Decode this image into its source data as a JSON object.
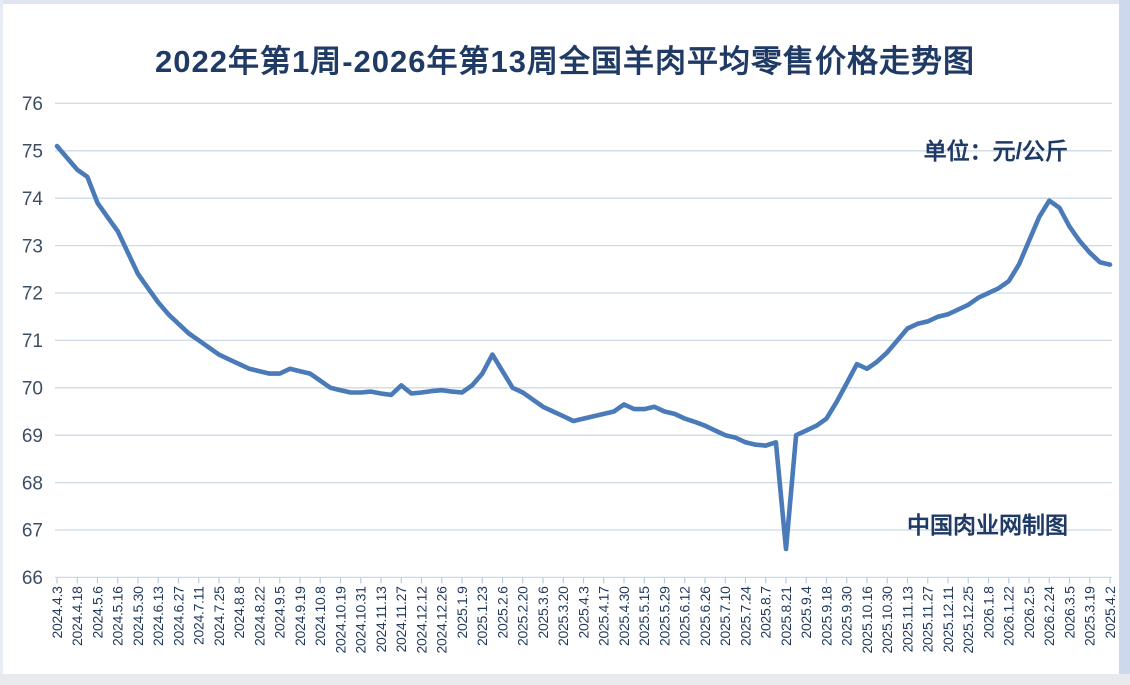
{
  "page": {
    "title": "2022年第1周-2026年第13周全国羊肉平均零售价格走势图",
    "unit_label": "单位：元/公斤",
    "watermark": "中国肉业网制图"
  },
  "colors": {
    "title_text": "#1f3a64",
    "line": "#4a7ab8",
    "grid": "#ccd9e6",
    "tick": "#b9cde4",
    "y_label_text": "#3d4e63",
    "x_label_text": "#20395c",
    "frame_right": "#ccd8ec",
    "frame_top": "#dee4f0"
  },
  "chart_data": {
    "type": "line",
    "title": "2022年第1周-2026年第13周全国羊肉平均零售价格走势图",
    "xlabel": "",
    "ylabel": "元/公斤",
    "ylim": [
      66,
      76
    ],
    "ytick_step": 1,
    "grid": true,
    "legend": false,
    "x_labels": [
      "2024.4.3",
      "2024.4.18",
      "2024.5.6",
      "2024.5.16",
      "2024.5.30",
      "2024.6.13",
      "2024.6.27",
      "2024.7.11",
      "2024.7.25",
      "2024.8.8",
      "2024.8.22",
      "2024.9.5",
      "2024.9.19",
      "2024.10.8",
      "2024.10.19",
      "2024.10.31",
      "2024.11.13",
      "2024.11.27",
      "2024.12.12",
      "2024.12.26",
      "2025.1.9",
      "2025.1.23",
      "2025.2.6",
      "2025.2.20",
      "2025.3.6",
      "2025.3.20",
      "2025.4.3",
      "2025.4.17",
      "2025.4.30",
      "2025.5.15",
      "2025.5.29",
      "2025.6.12",
      "2025.6.26",
      "2025.7.10",
      "2025.7.24",
      "2025.8.7",
      "2025.8.21",
      "2025.9.4",
      "2025.9.18",
      "2025.9.30",
      "2025.10.16",
      "2025.10.30",
      "2025.11.13",
      "2025.11.27",
      "2025.12.11",
      "2025.12.25",
      "2026.1.8",
      "2026.1.22",
      "2026.2.5",
      "2026.2.24",
      "2026.3.5",
      "2025.3.19",
      "2025.4.2"
    ],
    "series": [
      {
        "color": "#4a7ab8",
        "points": [
          [
            0,
            75.1
          ],
          [
            0.5,
            74.85
          ],
          [
            1,
            74.6
          ],
          [
            1.5,
            74.45
          ],
          [
            2,
            73.9
          ],
          [
            2.5,
            73.6
          ],
          [
            3,
            73.3
          ],
          [
            3.5,
            72.85
          ],
          [
            4,
            72.4
          ],
          [
            4.5,
            72.1
          ],
          [
            5,
            71.8
          ],
          [
            5.5,
            71.55
          ],
          [
            6,
            71.35
          ],
          [
            6.5,
            71.15
          ],
          [
            7,
            71.0
          ],
          [
            7.5,
            70.85
          ],
          [
            8,
            70.7
          ],
          [
            8.5,
            70.6
          ],
          [
            9,
            70.5
          ],
          [
            9.5,
            70.4
          ],
          [
            10,
            70.35
          ],
          [
            10.5,
            70.3
          ],
          [
            11,
            70.3
          ],
          [
            11.5,
            70.4
          ],
          [
            12,
            70.35
          ],
          [
            12.5,
            70.3
          ],
          [
            13,
            70.15
          ],
          [
            13.5,
            70.0
          ],
          [
            14,
            69.95
          ],
          [
            14.5,
            69.9
          ],
          [
            15,
            69.9
          ],
          [
            15.5,
            69.92
          ],
          [
            16,
            69.88
          ],
          [
            16.5,
            69.85
          ],
          [
            17,
            70.05
          ],
          [
            17.5,
            69.88
          ],
          [
            18,
            69.9
          ],
          [
            18.5,
            69.93
          ],
          [
            19,
            69.95
          ],
          [
            19.5,
            69.92
          ],
          [
            20,
            69.9
          ],
          [
            20.5,
            70.05
          ],
          [
            21,
            70.3
          ],
          [
            21.5,
            70.7
          ],
          [
            22,
            70.35
          ],
          [
            22.5,
            70.0
          ],
          [
            23,
            69.9
          ],
          [
            23.5,
            69.75
          ],
          [
            24,
            69.6
          ],
          [
            24.5,
            69.5
          ],
          [
            25,
            69.4
          ],
          [
            25.5,
            69.3
          ],
          [
            26,
            69.35
          ],
          [
            26.5,
            69.4
          ],
          [
            27,
            69.45
          ],
          [
            27.5,
            69.5
          ],
          [
            28,
            69.65
          ],
          [
            28.5,
            69.55
          ],
          [
            29,
            69.55
          ],
          [
            29.5,
            69.6
          ],
          [
            30,
            69.5
          ],
          [
            30.5,
            69.45
          ],
          [
            31,
            69.35
          ],
          [
            31.5,
            69.28
          ],
          [
            32,
            69.2
          ],
          [
            32.5,
            69.1
          ],
          [
            33,
            69.0
          ],
          [
            33.5,
            68.95
          ],
          [
            34,
            68.85
          ],
          [
            34.5,
            68.8
          ],
          [
            35,
            68.78
          ],
          [
            35.5,
            68.85
          ],
          [
            36,
            66.6
          ],
          [
            36.5,
            69.0
          ],
          [
            37,
            69.1
          ],
          [
            37.5,
            69.2
          ],
          [
            38,
            69.35
          ],
          [
            38.5,
            69.7
          ],
          [
            39,
            70.1
          ],
          [
            39.5,
            70.5
          ],
          [
            40,
            70.4
          ],
          [
            40.5,
            70.55
          ],
          [
            41,
            70.75
          ],
          [
            41.5,
            71.0
          ],
          [
            42,
            71.25
          ],
          [
            42.5,
            71.35
          ],
          [
            43,
            71.4
          ],
          [
            43.5,
            71.5
          ],
          [
            44,
            71.55
          ],
          [
            44.5,
            71.65
          ],
          [
            45,
            71.75
          ],
          [
            45.5,
            71.9
          ],
          [
            46,
            72.0
          ],
          [
            46.5,
            72.1
          ],
          [
            47,
            72.25
          ],
          [
            47.5,
            72.6
          ],
          [
            48,
            73.1
          ],
          [
            48.5,
            73.6
          ],
          [
            49,
            73.95
          ],
          [
            49.5,
            73.8
          ],
          [
            50,
            73.4
          ],
          [
            50.5,
            73.1
          ],
          [
            51,
            72.85
          ],
          [
            51.5,
            72.65
          ],
          [
            52,
            72.6
          ]
        ]
      }
    ]
  }
}
